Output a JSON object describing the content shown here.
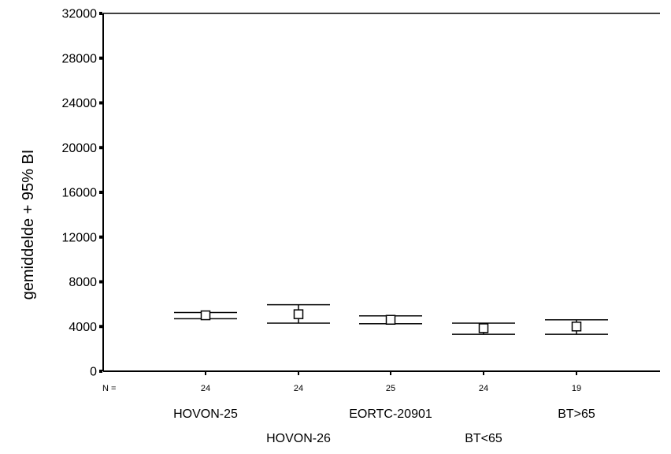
{
  "chart_data": {
    "type": "errorbar",
    "ylabel": "gemiddelde + 95% BI",
    "ylim": [
      0,
      32000
    ],
    "yticks": [
      0,
      4000,
      8000,
      12000,
      16000,
      20000,
      24000,
      28000,
      32000
    ],
    "ytick_labels": [
      "0",
      "4000",
      "8000",
      "12000",
      "16000",
      "20000",
      "24000",
      "28000",
      "32000"
    ],
    "n_prefix": "N =",
    "categories": [
      "HOVON-25",
      "HOVON-26",
      "EORTC-20901",
      "BT<65",
      "BT>65"
    ],
    "n": [
      "24",
      "24",
      "25",
      "24",
      "19"
    ],
    "mean": [
      5000,
      5100,
      4600,
      3850,
      4000
    ],
    "ci_lower": [
      4700,
      4300,
      4250,
      3300,
      3300
    ],
    "ci_upper": [
      5250,
      5950,
      4950,
      4300,
      4600
    ],
    "marker": "open-square",
    "grid": false,
    "colors": {
      "axis": "#000000",
      "background": "#ffffff"
    }
  }
}
